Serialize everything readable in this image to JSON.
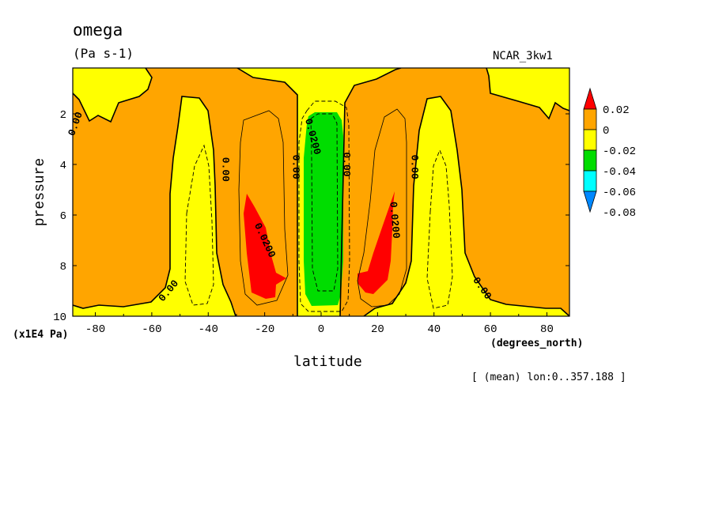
{
  "chart_data": {
    "type": "contour",
    "title": "omega",
    "units": "(Pa s-1)",
    "dataset": "NCAR_3kw1",
    "xlabel": "latitude",
    "x_units": "(degrees_north)",
    "ylabel": "pressure",
    "y_units": "(x1E4 Pa)",
    "averaging_note": "[ (mean) lon:0..357.188 ]",
    "xlim": [
      -88,
      88
    ],
    "ylim": [
      10,
      0.2
    ],
    "x_ticks": [
      -80,
      -60,
      -40,
      -20,
      0,
      20,
      40,
      60,
      80
    ],
    "x_tick_labels": [
      "-80",
      "-60",
      "-40",
      "-20",
      "0",
      "20",
      "40",
      "60",
      "80"
    ],
    "y_ticks": [
      2,
      4,
      6,
      8,
      10
    ],
    "y_tick_labels": [
      "2",
      "4",
      "6",
      "8",
      "10"
    ],
    "colorbar": {
      "labels": [
        "0.02",
        "0",
        "-0.02",
        "-0.04",
        "-0.06",
        "-0.08"
      ],
      "colors": {
        "red": "#ff0000",
        "orange": "#ffa500",
        "yellow": "#ffff00",
        "green": "#00dd00",
        "cyan": "#00ffff",
        "blue": "#0088ff"
      }
    },
    "contour_labels": [
      {
        "text": "0.00",
        "lat": -87,
        "p": 2.4,
        "rot": -70
      },
      {
        "text": "0.00",
        "lat": -34,
        "p": 4.2,
        "rot": 90
      },
      {
        "text": "0.00",
        "lat": -9,
        "p": 4.1,
        "rot": 90
      },
      {
        "text": "0.00",
        "lat": 9,
        "p": 4.0,
        "rot": 90
      },
      {
        "text": "0.00",
        "lat": 33,
        "p": 4.1,
        "rot": 90
      },
      {
        "text": "0.00",
        "lat": -54,
        "p": 9.0,
        "rot": -50
      },
      {
        "text": "0.00",
        "lat": 57,
        "p": 8.9,
        "rot": 55
      },
      {
        "text": "0.0200",
        "lat": -3,
        "p": 2.9,
        "rot": 75
      },
      {
        "text": "0.0200",
        "lat": -20,
        "p": 7.0,
        "rot": 65
      },
      {
        "text": "0.0200",
        "lat": 26,
        "p": 6.2,
        "rot": 85
      }
    ]
  }
}
